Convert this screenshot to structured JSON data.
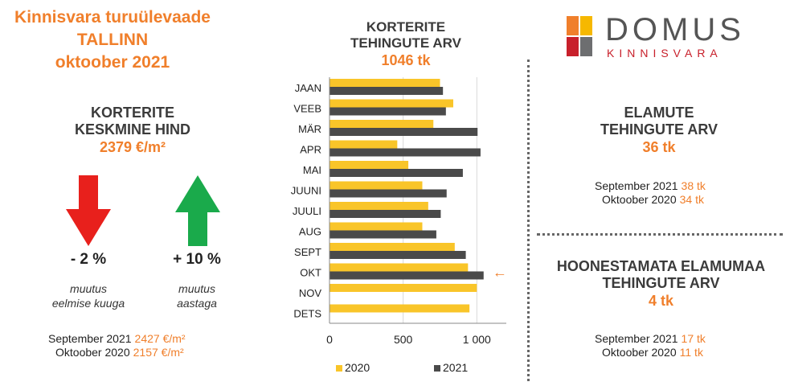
{
  "header": {
    "title_line1": "Kinnisvara turuülevaade",
    "title_line2": "TALLINN",
    "title_line3": "oktoober 2021"
  },
  "avg_price": {
    "heading_line1": "KORTERITE",
    "heading_line2": "KESKMINE HIND",
    "value": "2379 €/m²",
    "monthly_change": "- 2 %",
    "monthly_label_line1": "muutus",
    "monthly_label_line2": "eelmise kuuga",
    "yearly_change": "+ 10 %",
    "yearly_label_line1": "muutus",
    "yearly_label_line2": "aastaga",
    "compare": [
      {
        "label": "September 2021",
        "value": "2427 €/m²"
      },
      {
        "label": "Oktoober 2020",
        "value": "2157 €/m²"
      }
    ],
    "colors": {
      "down": "#e8201c",
      "up": "#1aaa4b"
    }
  },
  "logo": {
    "name": "DOMUS",
    "sub": "KINNISVARA",
    "colors": [
      "#f07f2b",
      "#f6b800",
      "#c8202b",
      "#6d6e70"
    ]
  },
  "houses": {
    "heading_line1": "ELAMUTE",
    "heading_line2": "TEHINGUTE ARV",
    "value": "36 tk",
    "compare": [
      {
        "label": "September 2021",
        "value": "38 tk"
      },
      {
        "label": "Oktoober 2020",
        "value": "34 tk"
      }
    ]
  },
  "land": {
    "heading_line1": "HOONESTAMATA ELAMUMAA",
    "heading_line2": "TEHINGUTE ARV",
    "value": "4 tk",
    "compare": [
      {
        "label": "September 2021",
        "value": "17 tk"
      },
      {
        "label": "Oktoober 2020",
        "value": "11 tk"
      }
    ]
  },
  "chart_data": {
    "type": "bar",
    "orientation": "horizontal",
    "title_line1": "KORTERITE",
    "title_line2": "TEHINGUTE ARV",
    "subtitle": "1046 tk",
    "categories": [
      "JAAN",
      "VEEB",
      "MÄR",
      "APR",
      "MAI",
      "JUUNI",
      "JUULI",
      "AUG",
      "SEPT",
      "OKT",
      "NOV",
      "DETS"
    ],
    "series": [
      {
        "name": "2020",
        "color": "#f9c529",
        "values": [
          750,
          840,
          705,
          460,
          535,
          630,
          670,
          630,
          850,
          940,
          1000,
          950
        ]
      },
      {
        "name": "2021",
        "color": "#4a4a4a",
        "values": [
          770,
          790,
          1005,
          1025,
          905,
          795,
          755,
          725,
          925,
          1046,
          null,
          null
        ]
      }
    ],
    "xlim": [
      0,
      1200
    ],
    "xticks": [
      0,
      500,
      1000
    ],
    "xtick_labels": [
      "0",
      "500",
      "1 000"
    ],
    "grid": true,
    "legend": "bottom",
    "annotation": {
      "category": "OKT",
      "symbol": "←",
      "color": "#f07f2b"
    }
  }
}
